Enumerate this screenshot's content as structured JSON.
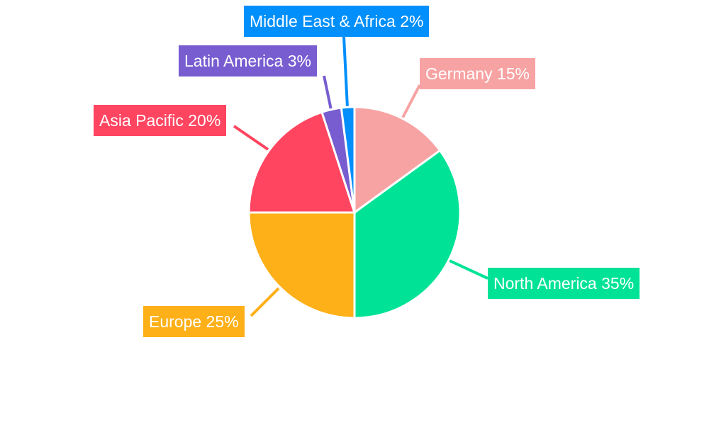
{
  "chart_data": {
    "type": "pie",
    "categories": [
      "Germany",
      "North America",
      "Europe",
      "Asia Pacific",
      "Latin America",
      "Middle East & Africa"
    ],
    "values": [
      15,
      35,
      25,
      20,
      3,
      2
    ],
    "unit": "%",
    "labels": [
      "Germany 15%",
      "North America 35%",
      "Europe 25%",
      "Asia Pacific 20%",
      "Latin America 3%",
      "Middle East & Africa 2%"
    ],
    "colors": [
      "#F8A3A3",
      "#00E396",
      "#FEB019",
      "#FF4560",
      "#775DD0",
      "#008FFB"
    ],
    "start_angle": "top, clockwise",
    "legend": "none"
  }
}
